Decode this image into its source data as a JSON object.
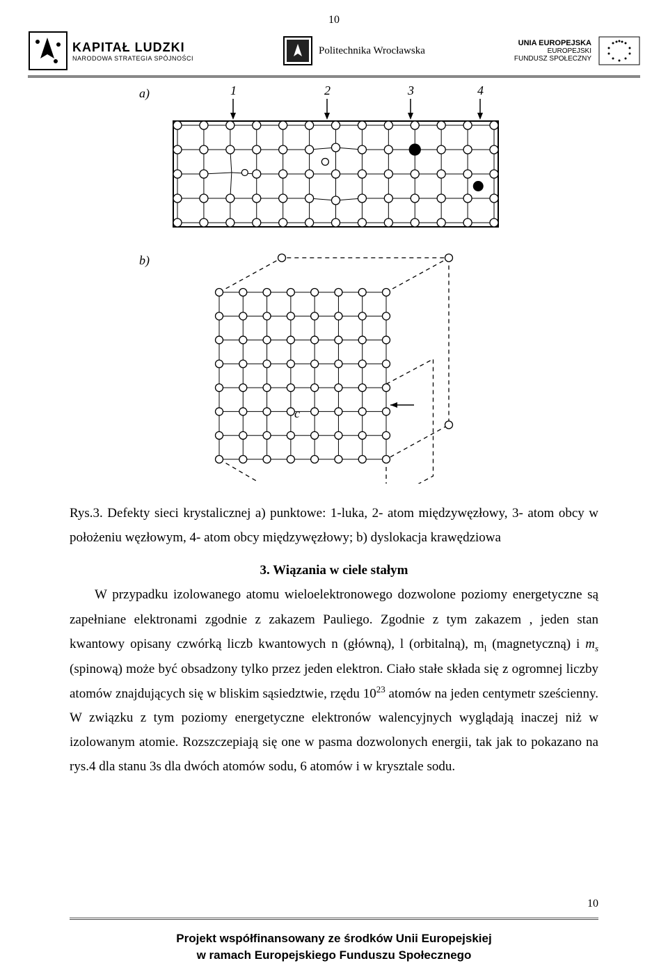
{
  "page": {
    "top_number": "10",
    "bottom_number": "10"
  },
  "header": {
    "kl_title": "KAPITAŁ LUDZKI",
    "kl_sub": "NARODOWA STRATEGIA SPÓJNOŚCI",
    "pw_text": "Politechnika Wrocławska",
    "eu_line1": "UNIA EUROPEJSKA",
    "eu_line2": "EUROPEJSKI",
    "eu_line3": "FUNDUSZ SPOŁECZNY"
  },
  "figure": {
    "label_a": "a)",
    "label_b": "b)",
    "arrow_labels": [
      "1",
      "2",
      "3",
      "4"
    ],
    "label_c": "c",
    "colors": {
      "stroke": "#000000",
      "bg": "#ffffff"
    },
    "grid_a": {
      "rows": 5,
      "cols": 13
    },
    "grid_b": {
      "rows": 8,
      "cols": 8
    }
  },
  "text": {
    "caption": "Rys.3. Defekty  sieci krystalicznej a) punktowe: 1-luka, 2- atom międzywęzłowy, 3- atom obcy w położeniu węzłowym, 4- atom obcy międzywęzłowy; b) dyslokacja krawędziowa",
    "heading": "3. Wiązania w ciele stałym",
    "para_part1": "W przypadku izolowanego atomu wieloelektronowego dozwolone poziomy energetyczne są zapełniane elektronami zgodnie z zakazem Pauliego. Zgodnie z tym zakazem , jeden stan kwantowy opisany czwórką liczb kwantowych n (główną), l (orbitalną), m",
    "para_sub1": "l",
    "para_part2": " (magnetyczną) i  ",
    "para_ms_m": "m",
    "para_ms_s": "s",
    "para_part3": " (spinową) może być obsadzony tylko przez jeden elektron. Ciało stałe składa się z ogromnej liczby atomów znajdujących się w bliskim sąsiedztwie, rzędu 10",
    "para_sup": "23",
    "para_part4": " atomów na jeden centymetr sześcienny. W związku z tym poziomy energetyczne elektronów walencyjnych wyglądają inaczej niż w izolowanym atomie. Rozszczepiają się one w pasma dozwolonych energii, tak jak to pokazano na rys.4 dla stanu 3s dla dwóch atomów sodu, 6 atomów i w krysztale sodu."
  },
  "footer": {
    "line1": "Projekt współfinansowany ze środków Unii Europejskiej",
    "line2": "w ramach Europejskiego Funduszu Społecznego"
  }
}
